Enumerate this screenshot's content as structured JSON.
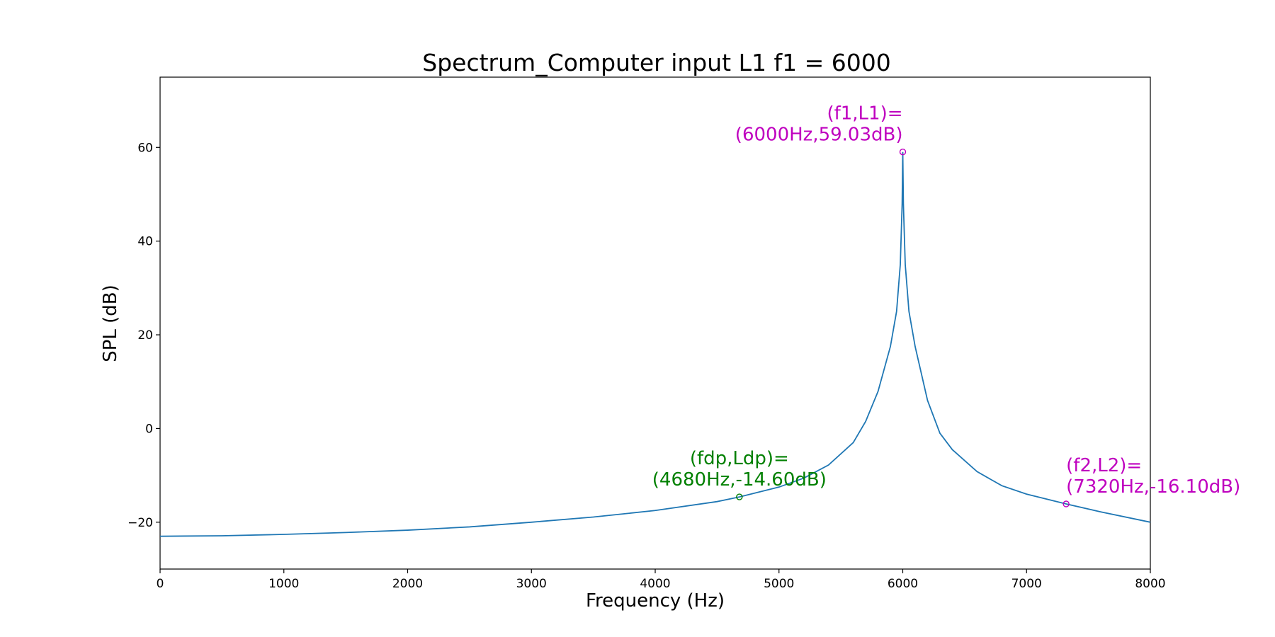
{
  "chart_data": {
    "type": "line",
    "title": "Spectrum_Computer input L1 f1 = 6000",
    "xlabel": "Frequency (Hz)",
    "ylabel": "SPL (dB)",
    "xlim": [
      0,
      8000
    ],
    "ylim": [
      -30,
      75
    ],
    "xticks": [
      0,
      1000,
      2000,
      3000,
      4000,
      5000,
      6000,
      7000,
      8000
    ],
    "xtick_labels": [
      "0",
      "1000",
      "2000",
      "3000",
      "4000",
      "5000",
      "6000",
      "7000",
      "8000"
    ],
    "yticks": [
      -20,
      0,
      20,
      40,
      60
    ],
    "ytick_labels": [
      "−20",
      "0",
      "20",
      "40",
      "60"
    ],
    "grid": false,
    "line_color": "#1f77b4",
    "series": [
      {
        "x": [
          0,
          500,
          1000,
          1500,
          2000,
          2500,
          3000,
          3500,
          4000,
          4500,
          4680,
          5000,
          5200,
          5400,
          5600,
          5700,
          5800,
          5900,
          5950,
          5980,
          5995,
          6000,
          6005,
          6020,
          6050,
          6100,
          6200,
          6300,
          6400,
          6600,
          6800,
          7000,
          7320,
          7600,
          8000
        ],
        "y": [
          -23.0,
          -22.9,
          -22.6,
          -22.2,
          -21.7,
          -21.0,
          -20.0,
          -18.9,
          -17.5,
          -15.6,
          -14.6,
          -12.5,
          -10.6,
          -7.8,
          -3.0,
          1.5,
          7.9,
          17.5,
          25.0,
          35.0,
          48.0,
          59.03,
          48.0,
          35.0,
          25.0,
          17.5,
          6.0,
          -1.0,
          -4.5,
          -9.2,
          -12.2,
          -14.0,
          -16.1,
          -17.8,
          -20.0
        ]
      }
    ],
    "annotations": [
      {
        "x": 6000,
        "y": 59.03,
        "lines": [
          "(f1,L1)=",
          "(6000Hz,59.03dB)"
        ],
        "color": "#bf00bf",
        "placement": "upper-left"
      },
      {
        "x": 4680,
        "y": -14.6,
        "lines": [
          "(fdp,Ldp)=",
          "(4680Hz,-14.60dB)"
        ],
        "color": "#008000",
        "placement": "upper-center"
      },
      {
        "x": 7320,
        "y": -16.1,
        "lines": [
          "(f2,L2)=",
          "(7320Hz,-16.10dB)"
        ],
        "color": "#bf00bf",
        "placement": "upper-right"
      }
    ]
  }
}
